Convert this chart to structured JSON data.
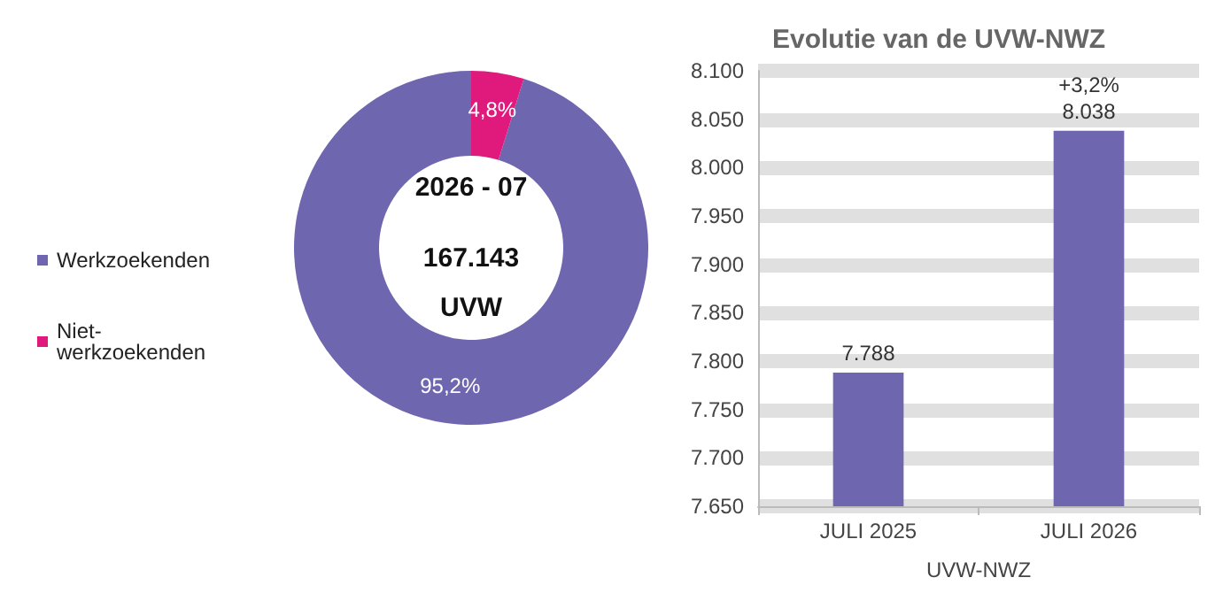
{
  "chart_data": [
    {
      "type": "donut",
      "categories": [
        "Werkzoekenden",
        "Niet-werkzoekenden"
      ],
      "values": [
        95.2,
        4.8
      ],
      "colors": [
        "#6e66ae",
        "#e0197d"
      ],
      "value_labels": [
        "95,2%",
        "4,8%"
      ],
      "legend": "left",
      "annotations": [
        "2026 - 07",
        "167.143",
        "UVW"
      ]
    },
    {
      "type": "bar",
      "title": "Evolutie van de UVW-NWZ",
      "categories": [
        "JULI 2025",
        "JULI 2026"
      ],
      "values": [
        7788,
        8038
      ],
      "color": "#6e66ae",
      "value_labels": [
        "7.788",
        "8.038"
      ],
      "ylim": [
        7650,
        8100
      ],
      "yticks": [
        {
          "value": 7650,
          "label": "7.650"
        },
        {
          "value": 7700,
          "label": "7.700"
        },
        {
          "value": 7750,
          "label": "7.750"
        },
        {
          "value": 7800,
          "label": "7.800"
        },
        {
          "value": 7850,
          "label": "7.850"
        },
        {
          "value": 7900,
          "label": "7.900"
        },
        {
          "value": 7950,
          "label": "7.950"
        },
        {
          "value": 8000,
          "label": "8.000"
        },
        {
          "value": 8050,
          "label": "8.050"
        },
        {
          "value": 8100,
          "label": "8.100"
        }
      ],
      "grid": "y",
      "xlabel": "UVW-NWZ",
      "annotations": [
        {
          "text": "+3,2%",
          "x": "JULI 2026",
          "y": 8038
        }
      ]
    }
  ]
}
